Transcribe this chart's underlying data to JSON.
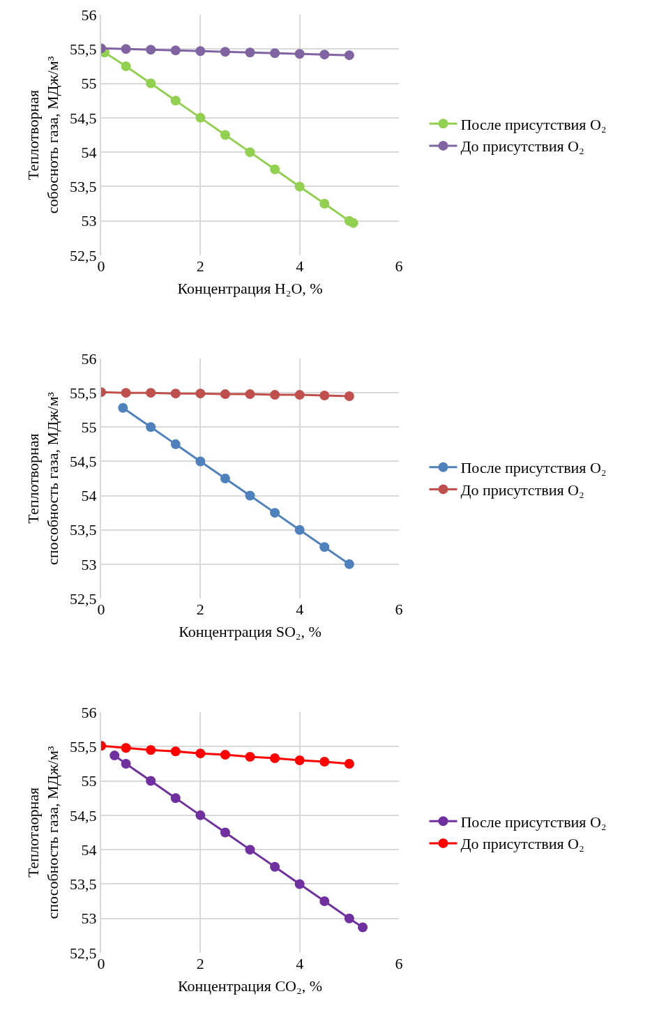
{
  "chart_data": [
    {
      "type": "line",
      "xlabel": "Концентрация H₂O, %",
      "ylabel": "Теплотворная\nсобосноть газа, МДж/м³",
      "xlim": [
        0,
        6
      ],
      "xticks": [
        0,
        2,
        4,
        6
      ],
      "ylim": [
        52.5,
        56
      ],
      "yticks": [
        {
          "value": 52.5,
          "label": "52,5"
        },
        53,
        {
          "value": 53.5,
          "label": "53,5"
        },
        54,
        {
          "value": 54.5,
          "label": "54,5"
        },
        55,
        {
          "value": 55.5,
          "label": "55,5"
        },
        56
      ],
      "grid": true,
      "legend": "right",
      "marker": "circle",
      "series": [
        {
          "name": "После присутствия O₂",
          "color": "#92d050",
          "x": [
            0.07,
            0.5,
            1,
            1.5,
            2,
            2.5,
            3,
            3.5,
            4,
            4.5,
            5,
            5.08
          ],
          "values": [
            55.45,
            55.25,
            55,
            54.75,
            54.5,
            54.25,
            54,
            53.75,
            53.5,
            53.25,
            53,
            52.97
          ]
        },
        {
          "name": "До присутствия O₂",
          "color": "#8064a2",
          "x": [
            0,
            0.5,
            1,
            1.5,
            2,
            2.5,
            3,
            3.5,
            4,
            4.5,
            5
          ],
          "values": [
            55.51,
            55.5,
            55.49,
            55.48,
            55.47,
            55.46,
            55.45,
            55.44,
            55.43,
            55.42,
            55.41
          ]
        }
      ]
    },
    {
      "type": "line",
      "xlabel": "Концентрация SO₂, %",
      "ylabel": "Теплотворная\nспособность газа, МДж/м³",
      "xlim": [
        0,
        6
      ],
      "xticks": [
        0,
        2,
        4,
        6
      ],
      "ylim": [
        52.5,
        56
      ],
      "yticks": [
        {
          "value": 52.5,
          "label": "52,5"
        },
        53,
        {
          "value": 53.5,
          "label": "53,5"
        },
        54,
        {
          "value": 54.5,
          "label": "54,5"
        },
        55,
        {
          "value": 55.5,
          "label": "55,5"
        },
        56
      ],
      "grid": true,
      "legend": "right",
      "marker": "circle",
      "series": [
        {
          "name": "После присутствия O₂",
          "color": "#4f81bd",
          "x": [
            0.44,
            1,
            1.5,
            2,
            2.5,
            3,
            3.5,
            4,
            4.5,
            5
          ],
          "values": [
            55.28,
            55,
            54.75,
            54.5,
            54.25,
            54,
            53.75,
            53.5,
            53.25,
            53
          ]
        },
        {
          "name": "До присутствия O₂",
          "color": "#c0504d",
          "x": [
            0,
            0.5,
            1,
            1.5,
            2,
            2.5,
            3,
            3.5,
            4,
            4.5,
            5
          ],
          "values": [
            55.51,
            55.5,
            55.5,
            55.49,
            55.49,
            55.48,
            55.48,
            55.47,
            55.47,
            55.46,
            55.45
          ]
        }
      ]
    },
    {
      "type": "line",
      "xlabel": "Концентрация CO₂, %",
      "ylabel": "Теплотаорная\nспособность газа, МДж/м³",
      "xlim": [
        0,
        6
      ],
      "xticks": [
        0,
        2,
        4,
        6
      ],
      "ylim": [
        52.5,
        56
      ],
      "yticks": [
        {
          "value": 52.5,
          "label": "52,5"
        },
        53,
        {
          "value": 53.5,
          "label": "53,5"
        },
        54,
        {
          "value": 54.5,
          "label": "54,5"
        },
        55,
        {
          "value": 55.5,
          "label": "55,5"
        },
        56
      ],
      "grid": true,
      "legend": "right",
      "marker": "circle",
      "series": [
        {
          "name": "После присутствия O₂",
          "color": "#7030a0",
          "x": [
            0.27,
            0.5,
            1,
            1.5,
            2,
            2.5,
            3,
            3.5,
            4,
            4.5,
            5,
            5.27
          ],
          "values": [
            55.37,
            55.25,
            55,
            54.75,
            54.5,
            54.25,
            54,
            53.75,
            53.5,
            53.25,
            53,
            52.87
          ]
        },
        {
          "name": "До присутствия O₂",
          "color": "#ff0000",
          "x": [
            0,
            0.5,
            1,
            1.5,
            2,
            2.5,
            3,
            3.5,
            4,
            4.5,
            5
          ],
          "values": [
            55.51,
            55.48,
            55.45,
            55.43,
            55.4,
            55.38,
            55.35,
            55.33,
            55.3,
            55.28,
            55.25
          ]
        }
      ]
    }
  ]
}
